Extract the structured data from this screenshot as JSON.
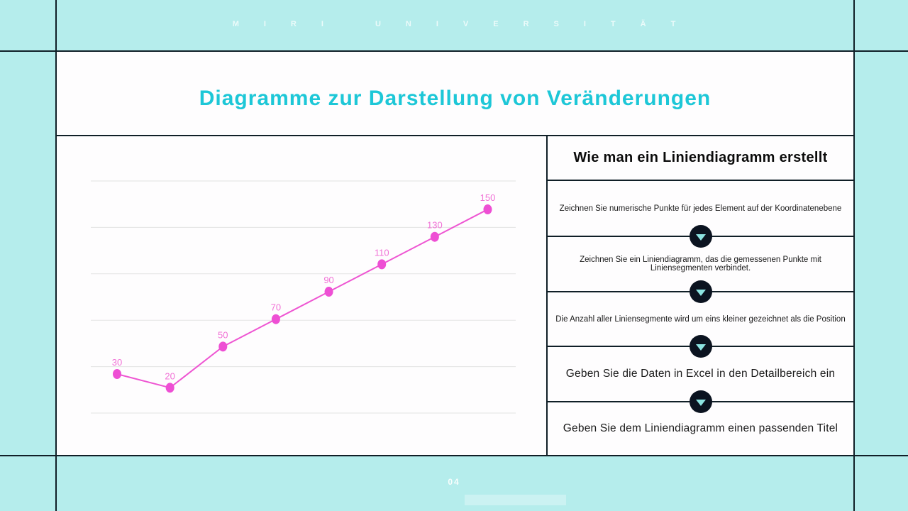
{
  "brand": {
    "text": "MIRI UNIVERSITÄT"
  },
  "slide": {
    "title": "Diagramme zur Darstellung von Veränderungen",
    "page_number": "04"
  },
  "chart_data": {
    "type": "line",
    "values": [
      30,
      20,
      50,
      70,
      90,
      110,
      130,
      150
    ],
    "point_labels": [
      "30",
      "20",
      "50",
      "70",
      "90",
      "110",
      "130",
      "150"
    ],
    "title": "",
    "xlabel": "",
    "ylabel": "",
    "ylim": [
      0,
      170
    ],
    "x_tick_labels": [],
    "y_tick_labels": [],
    "grid": "horizontal-only",
    "gridline_count": 6,
    "legend": "none",
    "line_color": "#ee55d2",
    "point_color": "#ee4fd4",
    "label_color": "#f172d6"
  },
  "right_panel": {
    "heading": "Wie man ein Liniendiagramm erstellt",
    "steps": [
      {
        "text": "Zeichnen Sie numerische Punkte für jedes Element auf der Koordinatenebene",
        "emphasis": "small"
      },
      {
        "text": "Zeichnen Sie ein Liniendiagramm, das die gemessenen Punkte mit Liniensegmenten verbindet.",
        "emphasis": "small"
      },
      {
        "text": "Die Anzahl aller Liniensegmente wird um eins kleiner gezeichnet als die Position",
        "emphasis": "small"
      },
      {
        "text": "Geben Sie die Daten in Excel in den Detailbereich ein",
        "emphasis": "large"
      },
      {
        "text": "Geben Sie dem Liniendiagramm einen passenden Titel",
        "emphasis": "large"
      }
    ],
    "arrow_icon": "chevron-down"
  },
  "colors": {
    "background": "#b5edec",
    "frame_line": "#101f27",
    "accent_title": "#1dc7d7",
    "chart_pink": "#ee55d2",
    "panel_white": "#fefdfe",
    "arrow_circle": "#0b1320",
    "arrow_triangle": "#8ce4e2",
    "gridline_gray": "#e3e3e3"
  }
}
